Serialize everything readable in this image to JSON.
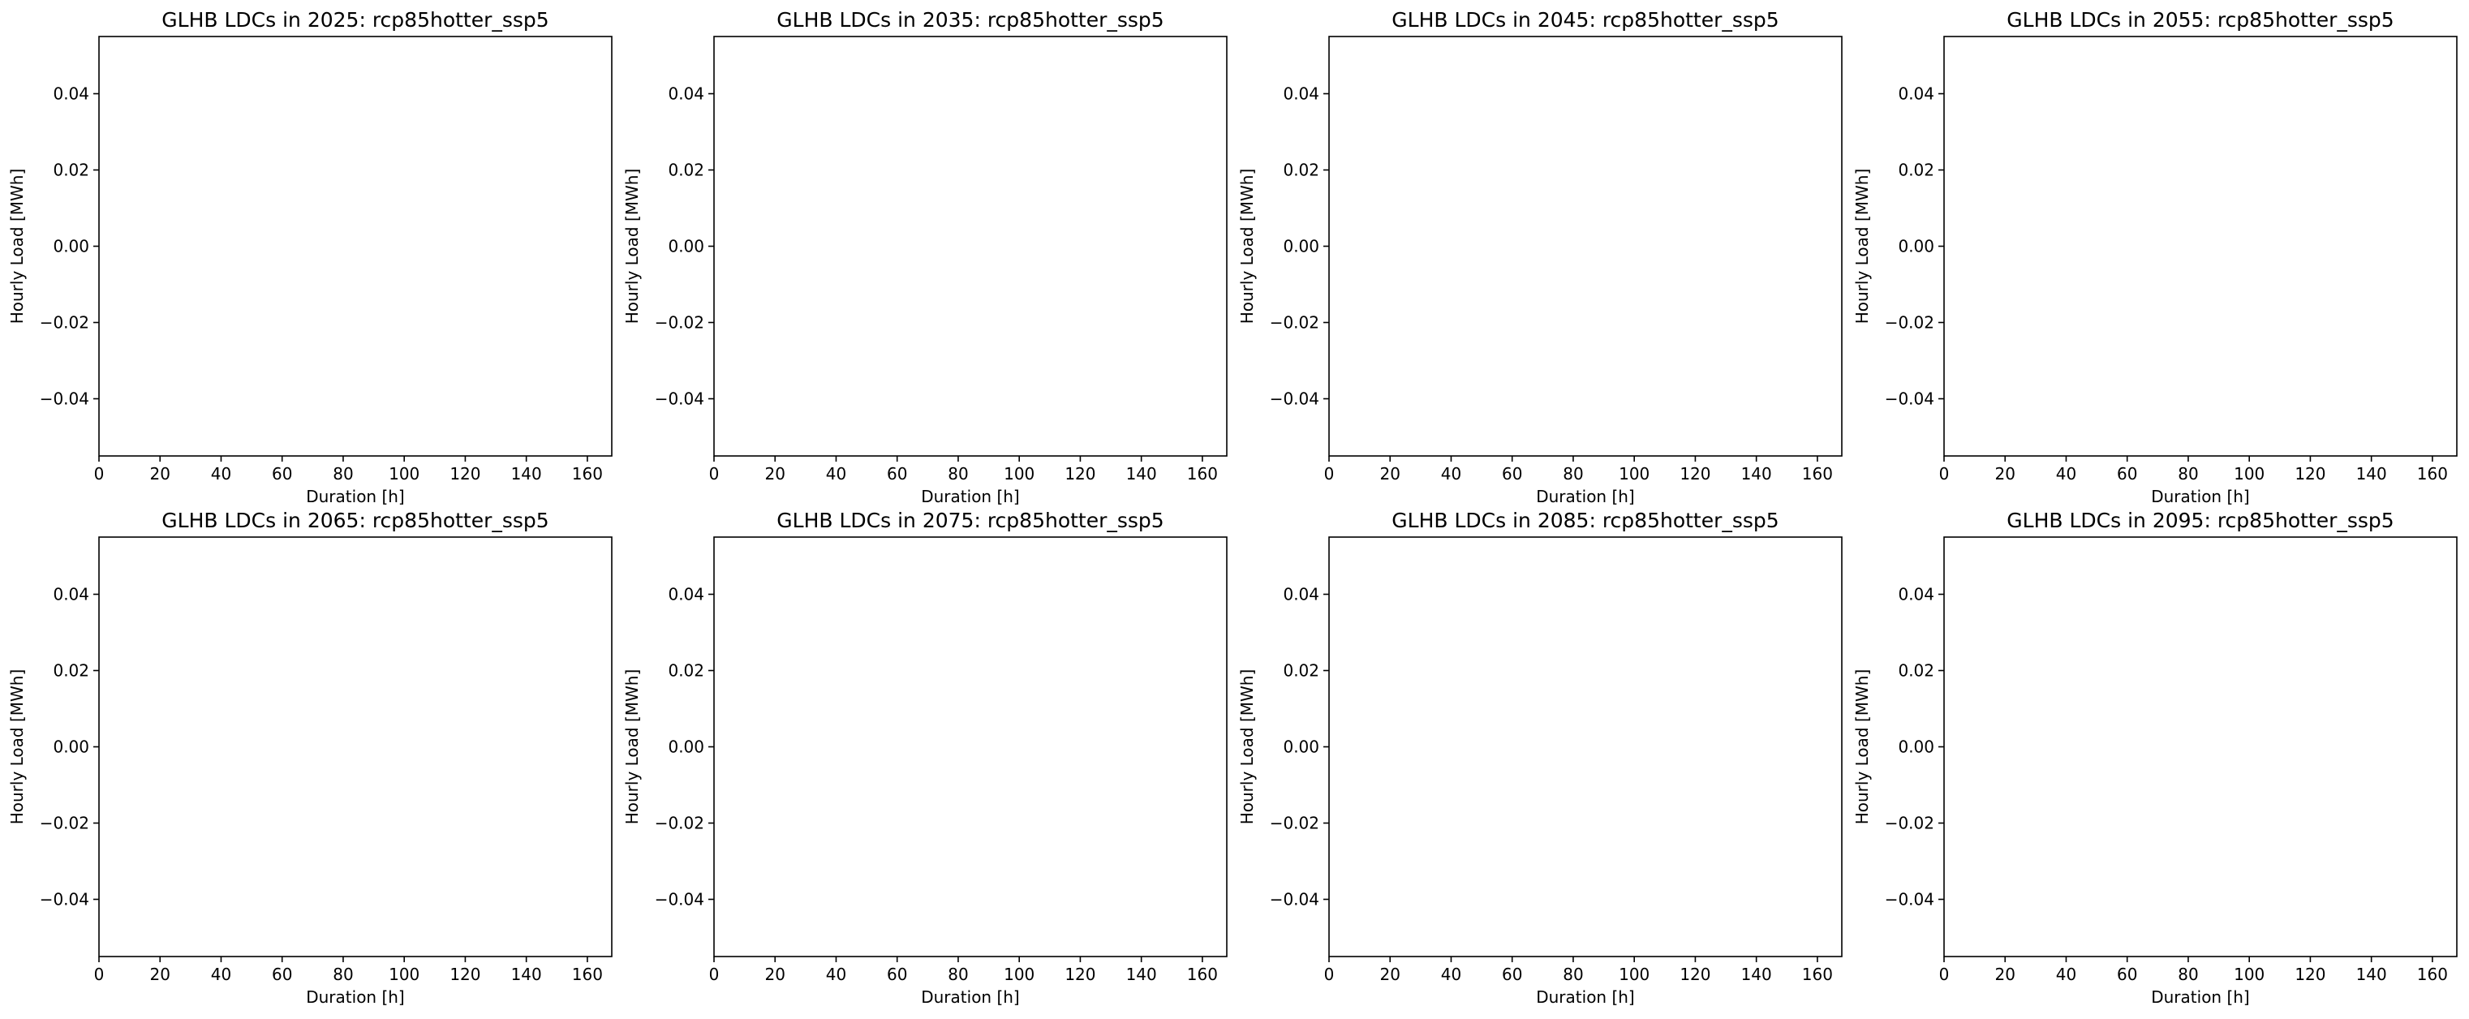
{
  "chart_data": [
    {
      "type": "line",
      "title": "GLHB LDCs in 2025: rcp85hotter_ssp5",
      "xlabel": "Duration [h]",
      "ylabel": "Hourly Load [MWh]",
      "xlim": [
        0,
        168
      ],
      "ylim": [
        -0.055,
        0.055
      ],
      "xticks": [
        "0",
        "20",
        "40",
        "60",
        "80",
        "100",
        "120",
        "140",
        "160"
      ],
      "yticks": [
        "0.04",
        "0.02",
        "0.00",
        "−0.02",
        "−0.04"
      ],
      "ytick_values": [
        0.04,
        0.02,
        0.0,
        -0.02,
        -0.04
      ],
      "series": [],
      "grid": false
    },
    {
      "type": "line",
      "title": "GLHB LDCs in 2035: rcp85hotter_ssp5",
      "xlabel": "Duration [h]",
      "ylabel": "Hourly Load [MWh]",
      "xlim": [
        0,
        168
      ],
      "ylim": [
        -0.055,
        0.055
      ],
      "xticks": [
        "0",
        "20",
        "40",
        "60",
        "80",
        "100",
        "120",
        "140",
        "160"
      ],
      "yticks": [
        "0.04",
        "0.02",
        "0.00",
        "−0.02",
        "−0.04"
      ],
      "ytick_values": [
        0.04,
        0.02,
        0.0,
        -0.02,
        -0.04
      ],
      "series": [],
      "grid": false
    },
    {
      "type": "line",
      "title": "GLHB LDCs in 2045: rcp85hotter_ssp5",
      "xlabel": "Duration [h]",
      "ylabel": "Hourly Load [MWh]",
      "xlim": [
        0,
        168
      ],
      "ylim": [
        -0.055,
        0.055
      ],
      "xticks": [
        "0",
        "20",
        "40",
        "60",
        "80",
        "100",
        "120",
        "140",
        "160"
      ],
      "yticks": [
        "0.04",
        "0.02",
        "0.00",
        "−0.02",
        "−0.04"
      ],
      "ytick_values": [
        0.04,
        0.02,
        0.0,
        -0.02,
        -0.04
      ],
      "series": [],
      "grid": false
    },
    {
      "type": "line",
      "title": "GLHB LDCs in 2055: rcp85hotter_ssp5",
      "xlabel": "Duration [h]",
      "ylabel": "Hourly Load [MWh]",
      "xlim": [
        0,
        168
      ],
      "ylim": [
        -0.055,
        0.055
      ],
      "xticks": [
        "0",
        "20",
        "40",
        "60",
        "80",
        "100",
        "120",
        "140",
        "160"
      ],
      "yticks": [
        "0.04",
        "0.02",
        "0.00",
        "−0.02",
        "−0.04"
      ],
      "ytick_values": [
        0.04,
        0.02,
        0.0,
        -0.02,
        -0.04
      ],
      "series": [],
      "grid": false
    },
    {
      "type": "line",
      "title": "GLHB LDCs in 2065: rcp85hotter_ssp5",
      "xlabel": "Duration [h]",
      "ylabel": "Hourly Load [MWh]",
      "xlim": [
        0,
        168
      ],
      "ylim": [
        -0.055,
        0.055
      ],
      "xticks": [
        "0",
        "20",
        "40",
        "60",
        "80",
        "100",
        "120",
        "140",
        "160"
      ],
      "yticks": [
        "0.04",
        "0.02",
        "0.00",
        "−0.02",
        "−0.04"
      ],
      "ytick_values": [
        0.04,
        0.02,
        0.0,
        -0.02,
        -0.04
      ],
      "series": [],
      "grid": false
    },
    {
      "type": "line",
      "title": "GLHB LDCs in 2075: rcp85hotter_ssp5",
      "xlabel": "Duration [h]",
      "ylabel": "Hourly Load [MWh]",
      "xlim": [
        0,
        168
      ],
      "ylim": [
        -0.055,
        0.055
      ],
      "xticks": [
        "0",
        "20",
        "40",
        "60",
        "80",
        "100",
        "120",
        "140",
        "160"
      ],
      "yticks": [
        "0.04",
        "0.02",
        "0.00",
        "−0.02",
        "−0.04"
      ],
      "ytick_values": [
        0.04,
        0.02,
        0.0,
        -0.02,
        -0.04
      ],
      "series": [],
      "grid": false
    },
    {
      "type": "line",
      "title": "GLHB LDCs in 2085: rcp85hotter_ssp5",
      "xlabel": "Duration [h]",
      "ylabel": "Hourly Load [MWh]",
      "xlim": [
        0,
        168
      ],
      "ylim": [
        -0.055,
        0.055
      ],
      "xticks": [
        "0",
        "20",
        "40",
        "60",
        "80",
        "100",
        "120",
        "140",
        "160"
      ],
      "yticks": [
        "0.04",
        "0.02",
        "0.00",
        "−0.02",
        "−0.04"
      ],
      "ytick_values": [
        0.04,
        0.02,
        0.0,
        -0.02,
        -0.04
      ],
      "series": [],
      "grid": false
    },
    {
      "type": "line",
      "title": "GLHB LDCs in 2095: rcp85hotter_ssp5",
      "xlabel": "Duration [h]",
      "ylabel": "Hourly Load [MWh]",
      "xlim": [
        0,
        168
      ],
      "ylim": [
        -0.055,
        0.055
      ],
      "xticks": [
        "0",
        "20",
        "40",
        "60",
        "80",
        "100",
        "120",
        "140",
        "160"
      ],
      "yticks": [
        "0.04",
        "0.02",
        "0.00",
        "−0.02",
        "−0.04"
      ],
      "ytick_values": [
        0.04,
        0.02,
        0.0,
        -0.02,
        -0.04
      ],
      "series": [],
      "grid": false
    }
  ]
}
